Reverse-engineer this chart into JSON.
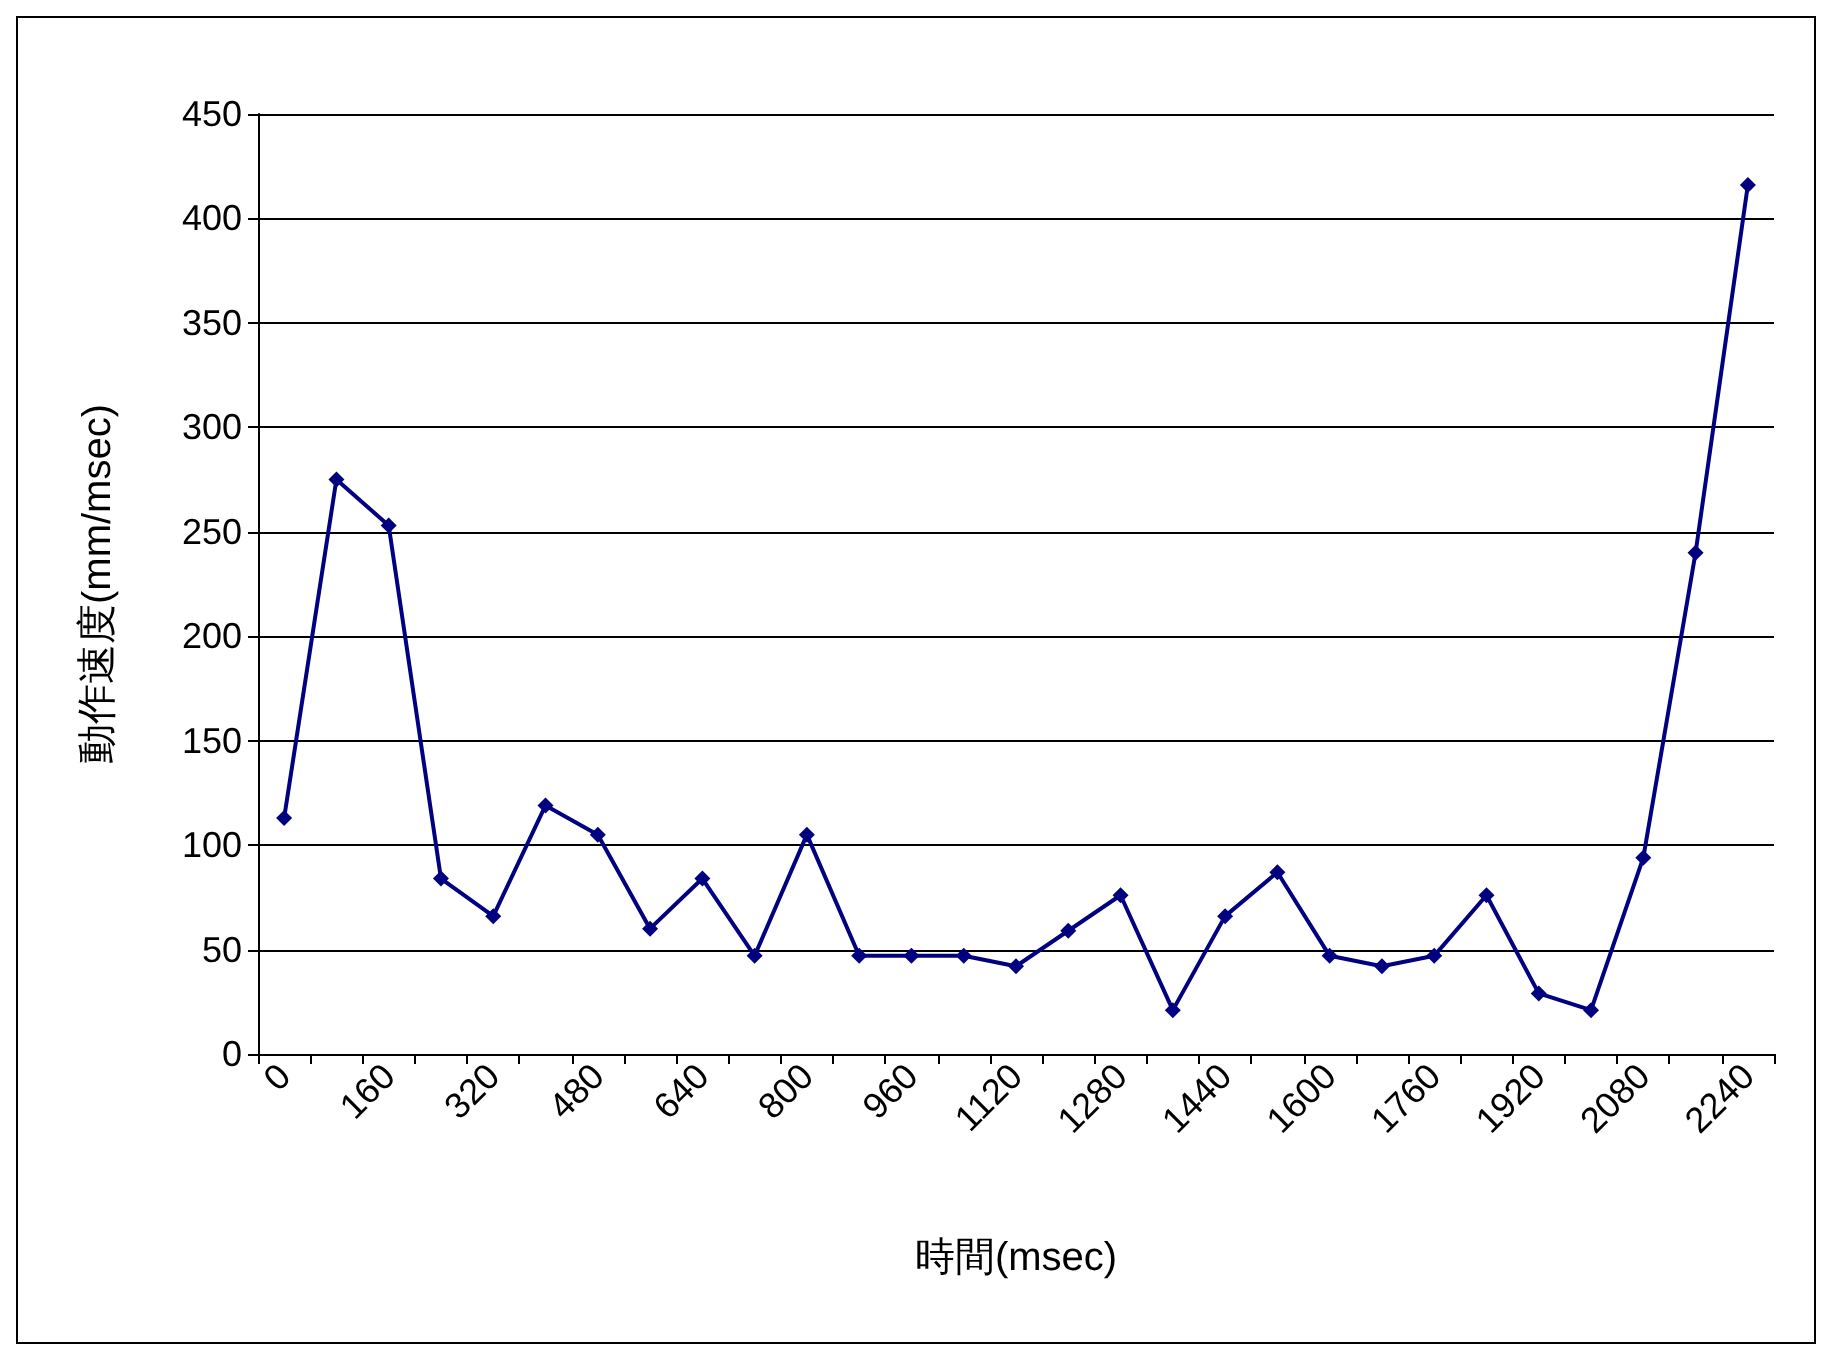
{
  "chart_data": {
    "type": "line",
    "xlabel": "時間(msec)",
    "ylabel": "動作速度(mm/msec)",
    "categories": [
      "0",
      null,
      "160",
      null,
      "320",
      null,
      "480",
      null,
      "640",
      null,
      "800",
      null,
      "960",
      null,
      "1120",
      null,
      "1280",
      null,
      "1440",
      null,
      "1600",
      null,
      "1760",
      null,
      "1920",
      null,
      "2080",
      null,
      "2240"
    ],
    "series": [
      {
        "color": "#000080",
        "values": [
          113,
          275,
          253,
          84,
          66,
          119,
          105,
          60,
          84,
          47,
          105,
          47,
          47,
          47,
          42,
          59,
          76,
          21,
          66,
          87,
          47,
          42,
          47,
          76,
          29,
          21,
          94,
          240,
          416
        ]
      }
    ],
    "ylim": [
      0,
      450
    ],
    "yticks": [
      0,
      50,
      100,
      150,
      200,
      250,
      300,
      350,
      400,
      450
    ],
    "grid": "y",
    "marker": "diamond",
    "line_style": "solid"
  }
}
